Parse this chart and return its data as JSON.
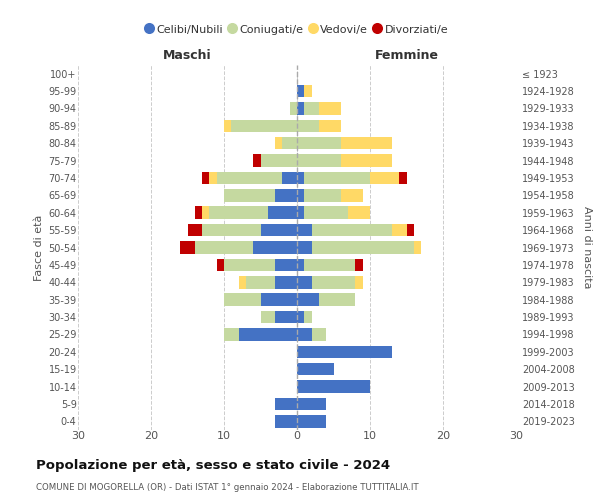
{
  "age_groups_bottom_to_top": [
    "0-4",
    "5-9",
    "10-14",
    "15-19",
    "20-24",
    "25-29",
    "30-34",
    "35-39",
    "40-44",
    "45-49",
    "50-54",
    "55-59",
    "60-64",
    "65-69",
    "70-74",
    "75-79",
    "80-84",
    "85-89",
    "90-94",
    "95-99",
    "100+"
  ],
  "birth_years_bottom_to_top": [
    "2019-2023",
    "2014-2018",
    "2009-2013",
    "2004-2008",
    "1999-2003",
    "1994-1998",
    "1989-1993",
    "1984-1988",
    "1979-1983",
    "1974-1978",
    "1969-1973",
    "1964-1968",
    "1959-1963",
    "1954-1958",
    "1949-1953",
    "1944-1948",
    "1939-1943",
    "1934-1938",
    "1929-1933",
    "1924-1928",
    "≤ 1923"
  ],
  "male": {
    "celibi": [
      3,
      3,
      0,
      0,
      0,
      8,
      3,
      5,
      3,
      3,
      6,
      5,
      4,
      3,
      2,
      0,
      0,
      0,
      0,
      0,
      0
    ],
    "coniugati": [
      0,
      0,
      0,
      0,
      0,
      2,
      2,
      5,
      4,
      7,
      8,
      8,
      8,
      7,
      9,
      5,
      2,
      9,
      1,
      0,
      0
    ],
    "vedovi": [
      0,
      0,
      0,
      0,
      0,
      0,
      0,
      0,
      1,
      0,
      0,
      0,
      1,
      0,
      1,
      0,
      1,
      1,
      0,
      0,
      0
    ],
    "divorziati": [
      0,
      0,
      0,
      0,
      0,
      0,
      0,
      0,
      0,
      1,
      2,
      2,
      1,
      0,
      1,
      1,
      0,
      0,
      0,
      0,
      0
    ]
  },
  "female": {
    "nubili": [
      4,
      4,
      10,
      5,
      13,
      2,
      1,
      3,
      2,
      1,
      2,
      2,
      1,
      1,
      1,
      0,
      0,
      0,
      1,
      1,
      0
    ],
    "coniugate": [
      0,
      0,
      0,
      0,
      0,
      2,
      1,
      5,
      6,
      7,
      14,
      11,
      6,
      5,
      9,
      6,
      6,
      3,
      2,
      0,
      0
    ],
    "vedove": [
      0,
      0,
      0,
      0,
      0,
      0,
      0,
      0,
      1,
      0,
      1,
      2,
      3,
      3,
      4,
      7,
      7,
      3,
      3,
      1,
      0
    ],
    "divorziate": [
      0,
      0,
      0,
      0,
      0,
      0,
      0,
      0,
      0,
      1,
      0,
      1,
      0,
      0,
      1,
      0,
      0,
      0,
      0,
      0,
      0
    ]
  },
  "colors": {
    "celibi_nubili": "#4472C4",
    "coniugati": "#c5d9a0",
    "vedovi": "#FFD966",
    "divorziati": "#C00000"
  },
  "xlim": 30,
  "title": "Popolazione per età, sesso e stato civile - 2024",
  "subtitle": "COMUNE DI MOGORELLA (OR) - Dati ISTAT 1° gennaio 2024 - Elaborazione TUTTITALIA.IT",
  "xlabel_left": "Maschi",
  "xlabel_right": "Femmine",
  "ylabel_left": "Fasce di età",
  "ylabel_right": "Anni di nascita",
  "legend_labels": [
    "Celibi/Nubili",
    "Coniugati/e",
    "Vedovi/e",
    "Divorziati/e"
  ],
  "bg_color": "#ffffff",
  "grid_color": "#cccccc"
}
